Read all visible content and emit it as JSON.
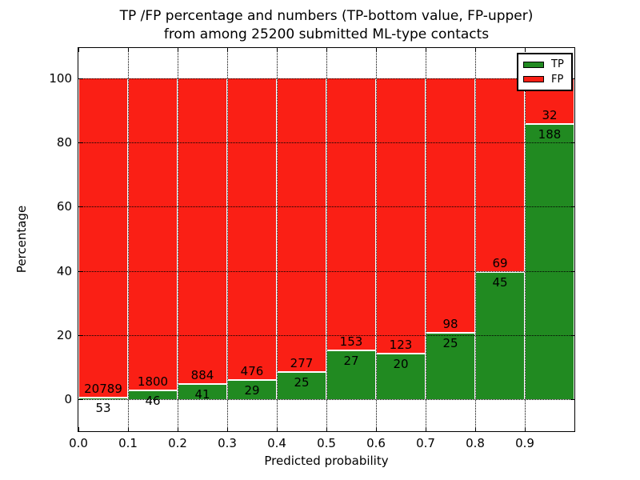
{
  "chart_data": {
    "type": "bar",
    "stacked": true,
    "normalized_to_percent": true,
    "title": "TP /FP percentage and numbers (TP-bottom value, FP-upper)\nfrom among 25200 submitted ML-type contacts",
    "title_lines": [
      "TP /FP percentage and numbers (TP-bottom value, FP-upper)",
      "from among 25200 submitted ML-type contacts"
    ],
    "total_contacts": 25200,
    "xlabel": "Predicted probability",
    "ylabel": "Percentage",
    "x_tick_labels": [
      "0.0",
      "0.1",
      "0.2",
      "0.3",
      "0.4",
      "0.5",
      "0.6",
      "0.7",
      "0.8",
      "0.9"
    ],
    "y_ticks": [
      0,
      20,
      40,
      60,
      80,
      100
    ],
    "y_tick_labels": [
      "0",
      "20",
      "40",
      "60",
      "80",
      "100"
    ],
    "x_range": [
      0.0,
      1.0
    ],
    "bin_width": 0.1,
    "ylim": [
      -10,
      110
    ],
    "grid": "dotted",
    "categories": [
      "0.0-0.1",
      "0.1-0.2",
      "0.2-0.3",
      "0.3-0.4",
      "0.4-0.5",
      "0.5-0.6",
      "0.6-0.7",
      "0.7-0.8",
      "0.8-0.9",
      "0.9-1.0"
    ],
    "series": [
      {
        "name": "TP",
        "color": "#218a21",
        "values": [
          53,
          46,
          41,
          29,
          25,
          27,
          20,
          25,
          45,
          188
        ]
      },
      {
        "name": "FP",
        "color": "#fa1f15",
        "values": [
          20789,
          1800,
          884,
          476,
          277,
          153,
          123,
          98,
          69,
          32
        ]
      }
    ],
    "tp_percent": [
      0.25,
      2.49,
      4.43,
      5.74,
      8.28,
      15.0,
      13.99,
      20.33,
      39.47,
      85.45
    ],
    "legend": {
      "position": "upper right",
      "entries": [
        "TP",
        "FP"
      ]
    },
    "axis_color": "#000000",
    "background_color": "#ffffff"
  }
}
